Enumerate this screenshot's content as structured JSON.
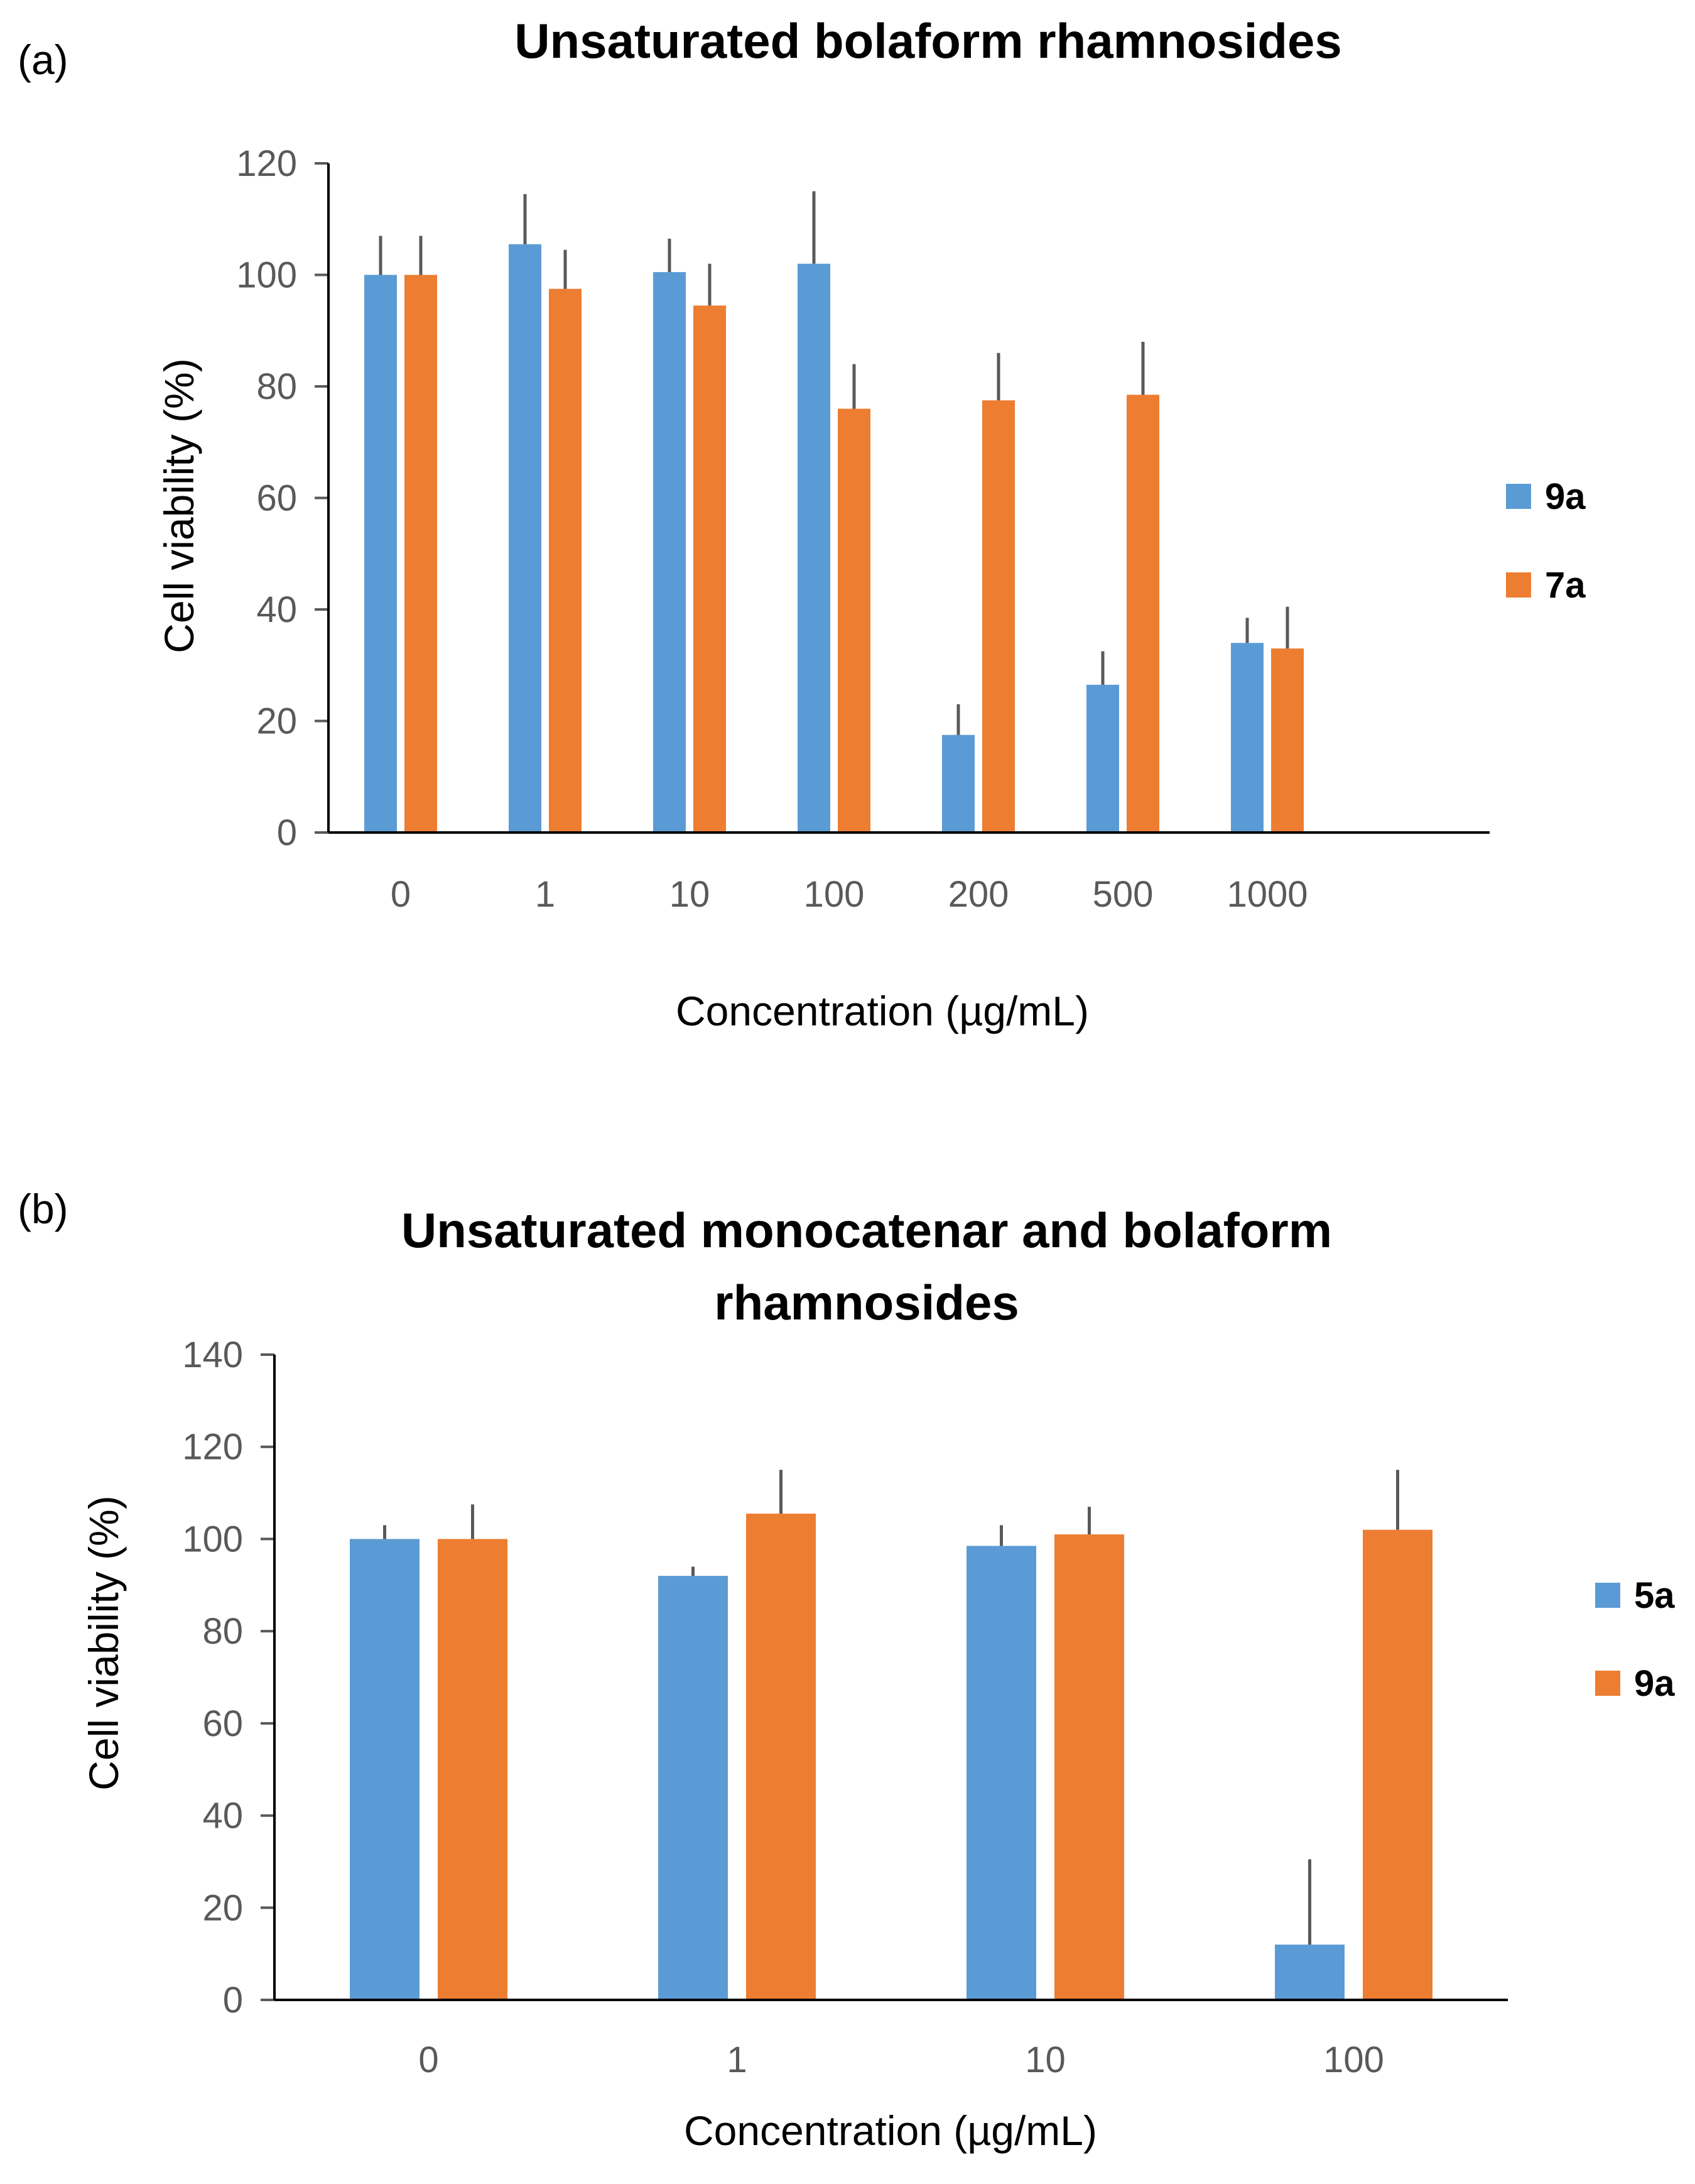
{
  "chart_data": [
    {
      "type": "bar",
      "panel_label": "(a)",
      "title": "Unsaturated bolaform rhamnosides",
      "xlabel": "Concentration (µg/mL)",
      "ylabel": "Cell viability (%)",
      "categories": [
        "0",
        "1",
        "10",
        "100",
        "200",
        "500",
        "1000"
      ],
      "ylim": [
        0,
        120
      ],
      "yticks": [
        0,
        20,
        40,
        60,
        80,
        100,
        120
      ],
      "grid": false,
      "legend_position": "right",
      "series": [
        {
          "name": "9a",
          "color": "#5B9BD5",
          "values": [
            100,
            105.5,
            100.5,
            102,
            17.5,
            26.5,
            34
          ],
          "errors": [
            7,
            9,
            6,
            13,
            5.5,
            6,
            4.5
          ]
        },
        {
          "name": "7a",
          "color": "#ED7D31",
          "values": [
            100,
            97.5,
            94.5,
            76,
            77.5,
            78.5,
            33
          ],
          "errors": [
            7,
            7,
            7.5,
            8,
            8.5,
            9.5,
            7.5
          ]
        }
      ]
    },
    {
      "type": "bar",
      "panel_label": "(b)",
      "title": [
        "Unsaturated monocatenar and bolaform",
        "rhamnosides"
      ],
      "xlabel": "Concentration (µg/mL)",
      "ylabel": "Cell viability (%)",
      "categories": [
        "0",
        "1",
        "10",
        "100"
      ],
      "ylim": [
        0,
        140
      ],
      "yticks": [
        0,
        20,
        40,
        60,
        80,
        100,
        120,
        140
      ],
      "grid": false,
      "legend_position": "right",
      "series": [
        {
          "name": "5a",
          "color": "#5B9BD5",
          "values": [
            100,
            92,
            98.5,
            12
          ],
          "errors": [
            3,
            2,
            4.5,
            18.5
          ]
        },
        {
          "name": "9a",
          "color": "#ED7D31",
          "values": [
            100,
            105.5,
            101,
            102
          ],
          "errors": [
            7.5,
            9.5,
            6,
            13
          ]
        }
      ]
    }
  ]
}
